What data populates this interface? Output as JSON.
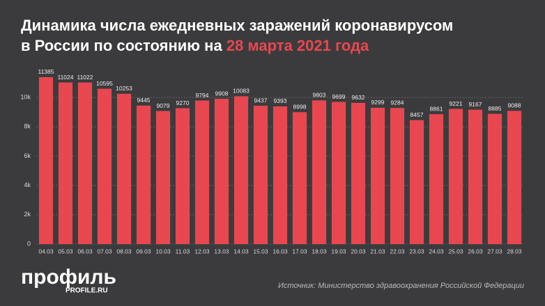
{
  "chart_data": {
    "type": "bar",
    "title_line1": "Динамика числа ежедневных заражений коронавирусом",
    "title_line2": "в России по состоянию на",
    "title_highlight": "28 марта 2021 года",
    "categories": [
      "04.03",
      "05.03",
      "06.03",
      "07.03",
      "08.03",
      "09.03",
      "10.03",
      "11.03",
      "12.03",
      "13.03",
      "14.03",
      "15.03",
      "16.03",
      "17.03",
      "18.03",
      "19.03",
      "20.03",
      "21.03",
      "22.03",
      "23.03",
      "24.03",
      "25.03",
      "26.03",
      "27.03",
      "28.03"
    ],
    "values": [
      11385,
      11024,
      11022,
      10595,
      10253,
      9445,
      9079,
      9270,
      9794,
      9908,
      10083,
      9437,
      9393,
      8998,
      9803,
      9699,
      9632,
      9299,
      9284,
      8457,
      8861,
      9221,
      9167,
      8885,
      9088
    ],
    "color": "#e9474f",
    "ylim": [
      0,
      12000
    ],
    "yticks": [
      0,
      {
        "value": 2000,
        "label": "2k"
      },
      {
        "value": 4000,
        "label": "4k"
      },
      {
        "value": 6000,
        "label": "6k"
      },
      {
        "value": 8000,
        "label": "8k"
      },
      {
        "value": 10000,
        "label": "10k"
      }
    ],
    "grid": true,
    "logo": "профиль",
    "logo_site": "PROFILE.RU",
    "source": "Источник: Министерство здравоохранения Российской Федерации"
  }
}
